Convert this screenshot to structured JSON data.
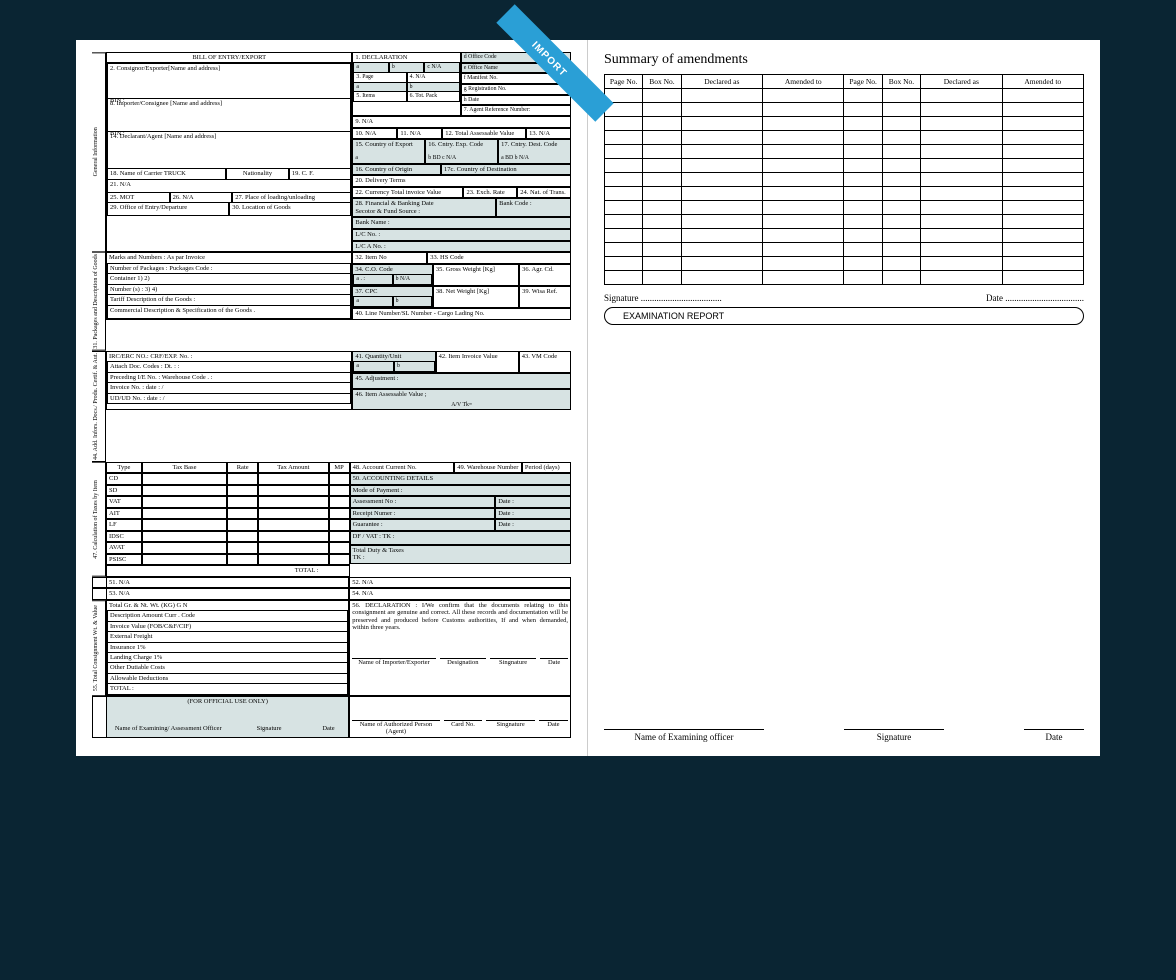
{
  "colors": {
    "page_bg": "#0a2533",
    "sheet_bg": "#ffffff",
    "ribbon_bg": "#2a9fd6",
    "shade_bg": "#d7e3e3",
    "border": "#000000"
  },
  "ribbon": {
    "text": "IMPORT"
  },
  "left": {
    "title": "BILL OF ENTRY/EXPORT",
    "section_sides": {
      "general": "General   Information",
      "packages": "31.  Packages and Description  of  Goods",
      "addinfo": "44.  Add. Infors.  Docs./ Produ.  Certif.  &  Aut.",
      "taxes": "47.   Calculation  of  Taxes   by   Item",
      "consign": "55.  Total Consignment Wt. &  Value"
    },
    "f2": "2.     Consignor/Exporter[Name and address]",
    "bin": "BIN :",
    "f8": "8.     Importer/Consignee [Name and address]",
    "f14": "14.  Declarant/Agent [Name and address]",
    "f18": "18.  Name of Carrier TRUCK",
    "nationality": "Nationality",
    "f19": "19.  C. F.",
    "f21": "21. N/A",
    "f25": "25.  MOT",
    "f26": "26.  N/A",
    "f27": "27.   Place  of  loading/unloading",
    "f29": "29.  Office  of  Entry/Departure",
    "f30": "30.  Location  of  Goods",
    "f1": "1. DECLARATION",
    "f1a": "a",
    "f1b": "b",
    "f1c": "c N/A",
    "d_office": "d  Office Code",
    "e_office": "e  Office Name",
    "f_manifest": "f   Manifest   No.",
    "g_reg": "g   Registration No.",
    "h_date": "h  Date",
    "f3": "3.  Page",
    "f4": "4.  N/A",
    "f3a": "a",
    "f3b": "b",
    "f5": "5.  Items",
    "f6": "6. Tot. Pack",
    "f7": "7. Agent   Reference   Number:",
    "f9": "9. N/A",
    "f10": "10. N/A",
    "f11": "11. N/A",
    "f12": "12. Total  Assessable   Value",
    "f13": "13.   N/A",
    "f15": "15.  Country of Export",
    "f15a": "a",
    "f16": "16.   Cntry.  Exp.  Code",
    "f16b": "b          BD          c N/A",
    "f17": "17.   Cntry. Dest. Code",
    "f17a": "a        BD          b N/A",
    "f16c": "16.  Country of Origin",
    "f17c": "17c.   Country  of  Destination",
    "f20": "20.   Delivery Terms",
    "f22": "22.   Currency       Total invoice Value",
    "f23": "23.  Exch.   Rate",
    "f24": "24.   Nat.   of   Trans.",
    "f28": "28.  Financial & Banking Date\nSecotor & Fund Source :",
    "bank_code": "Bank Code :",
    "bank_name": "Bank Name  :",
    "lc_no": "L/C   No.   :",
    "lc_a": "L/C  A No. :",
    "marks": "Marks  and  Numbers   :        As par   Invoice",
    "packages": "Number of Packages   :                               Puckages Code :",
    "container": "Container         1)                                                 2)",
    "numbers": "Number (s)   :   3)                                                 4)",
    "tariff": "Tariff Description  of  the  Goods :",
    "commercial": "Commercial   Description   &   Specification   of   the   Goods .",
    "irc": "IRC/ERC   NO.:                          CRF/EXP.  No.  :",
    "attach": "Attach  Doc.   Codes   :                                              Dt. :    :",
    "preceding": "Preceding I/E No.  :                                              Warehouse Code .   :",
    "invoice_no": "Invoice No. :              date :                                      /",
    "uidud": "UD/UD  No.  :              date :                                      /",
    "f32": "32.   Item  No",
    "f33": "33.  HS  Code",
    "f34": "34.   C.O.  Code",
    "f34a": "a . :",
    "f34b": "b N/A",
    "f35": "35.  Gross Weight [Kg]",
    "f36": "36.  Agr. Cd.",
    "f37": "37.   CPC",
    "f37a": "a",
    "f37b": "b",
    "f38": "38.  Net Weight [Kg]",
    "f39": "39.  Wisa Ref.",
    "f40": "40.   Line Number/SL Number - Cargo Lading No.",
    "f41": "41. Quantity/Unit",
    "f41a": "a",
    "f41b": "b",
    "f42": "42. Item Invoice Value",
    "f43": "43.  VM Code",
    "f45": "45.  Adjustment :",
    "f46": "46.  Item Assessable Value ;",
    "av": "A/V    Tk=",
    "tax_header": {
      "type": "Type",
      "base": "Tax   Base",
      "rate": "Rate",
      "amount": "Tax   Amount",
      "mp": "MP"
    },
    "tax_rows": [
      "CD",
      "SD",
      "VAT",
      "AIT",
      "LF",
      "IDSC",
      "AVAT",
      "PSISC"
    ],
    "tax_total": "TOTAL :",
    "f48": "48.  Account Current No.",
    "f49": "49.  Warehouse Number",
    "period": "Period (days)",
    "f50": "50.   ACCOUNTING DETAILS",
    "mode_pay": "Mode of Payment   :",
    "assess_no": "Assessment   No  :",
    "receipt": "Receipt Numer :",
    "guarantee": "Guarantee   :",
    "date_lbl": "Date :",
    "df_vat": "DF  /  VAT :                                        TK :",
    "total_duty": "Total Duty & Taxes\n                                                     TK :",
    "f51": "51.           N/A",
    "f52": "52.           N/A",
    "f53": "53.     N/A",
    "f54": "54.     N/A",
    "gross_net": "Total   Gr.   &   Nt.   Wt.   (KG)        G                                     N",
    "desc_hdr": "Description                                    Amount                Curr . Code",
    "inv_val": "Invoice  Value  (FOB/C&F/CIF)",
    "ext_freight": "External  Freight",
    "insurance": "Insurance              1%",
    "landing": "Landing  Charge     1%",
    "other_dut": "Other  Dutiable  Costs",
    "allow_ded": "Allowable Deductions",
    "total_lbl": "TOTAL :",
    "f56": "56.  DECLARATION  :  I/We  confirm  that  the  documents  relating    to  this consignment  are genuine and correct. All these records and documentation will be preserved and produced before Customs authorities,  If  and when demanded, within three years.",
    "sig_imp": "Name of Importer/Exporter",
    "sig_desig": "Designation",
    "sig_sign": "Singnature",
    "sig_date": "Date",
    "official": "(FOR  OFFICIAL  USE  ONLY)",
    "exam_officer": "Name of Examining/ Assessment Officer",
    "auth_person": "Name of Authorized Person\n(Agent)",
    "card_no": "Card No.",
    "signature": "Signature",
    "date_col": "Date"
  },
  "right": {
    "title": "Summary of amendments",
    "headers": [
      "Page No.",
      "Box No.",
      "Declared as",
      "Amended  to",
      "Page No.",
      "Box No.",
      "Declared as",
      "Amended  to"
    ],
    "blank_rows": 14,
    "signature_line": "Signature ....................................",
    "date_line": "Date ...................................",
    "exam_btn": "EXAMINATION REPORT",
    "bottom": {
      "officer": "Name of Examining officer",
      "signature": "Signature",
      "date": "Date"
    }
  }
}
